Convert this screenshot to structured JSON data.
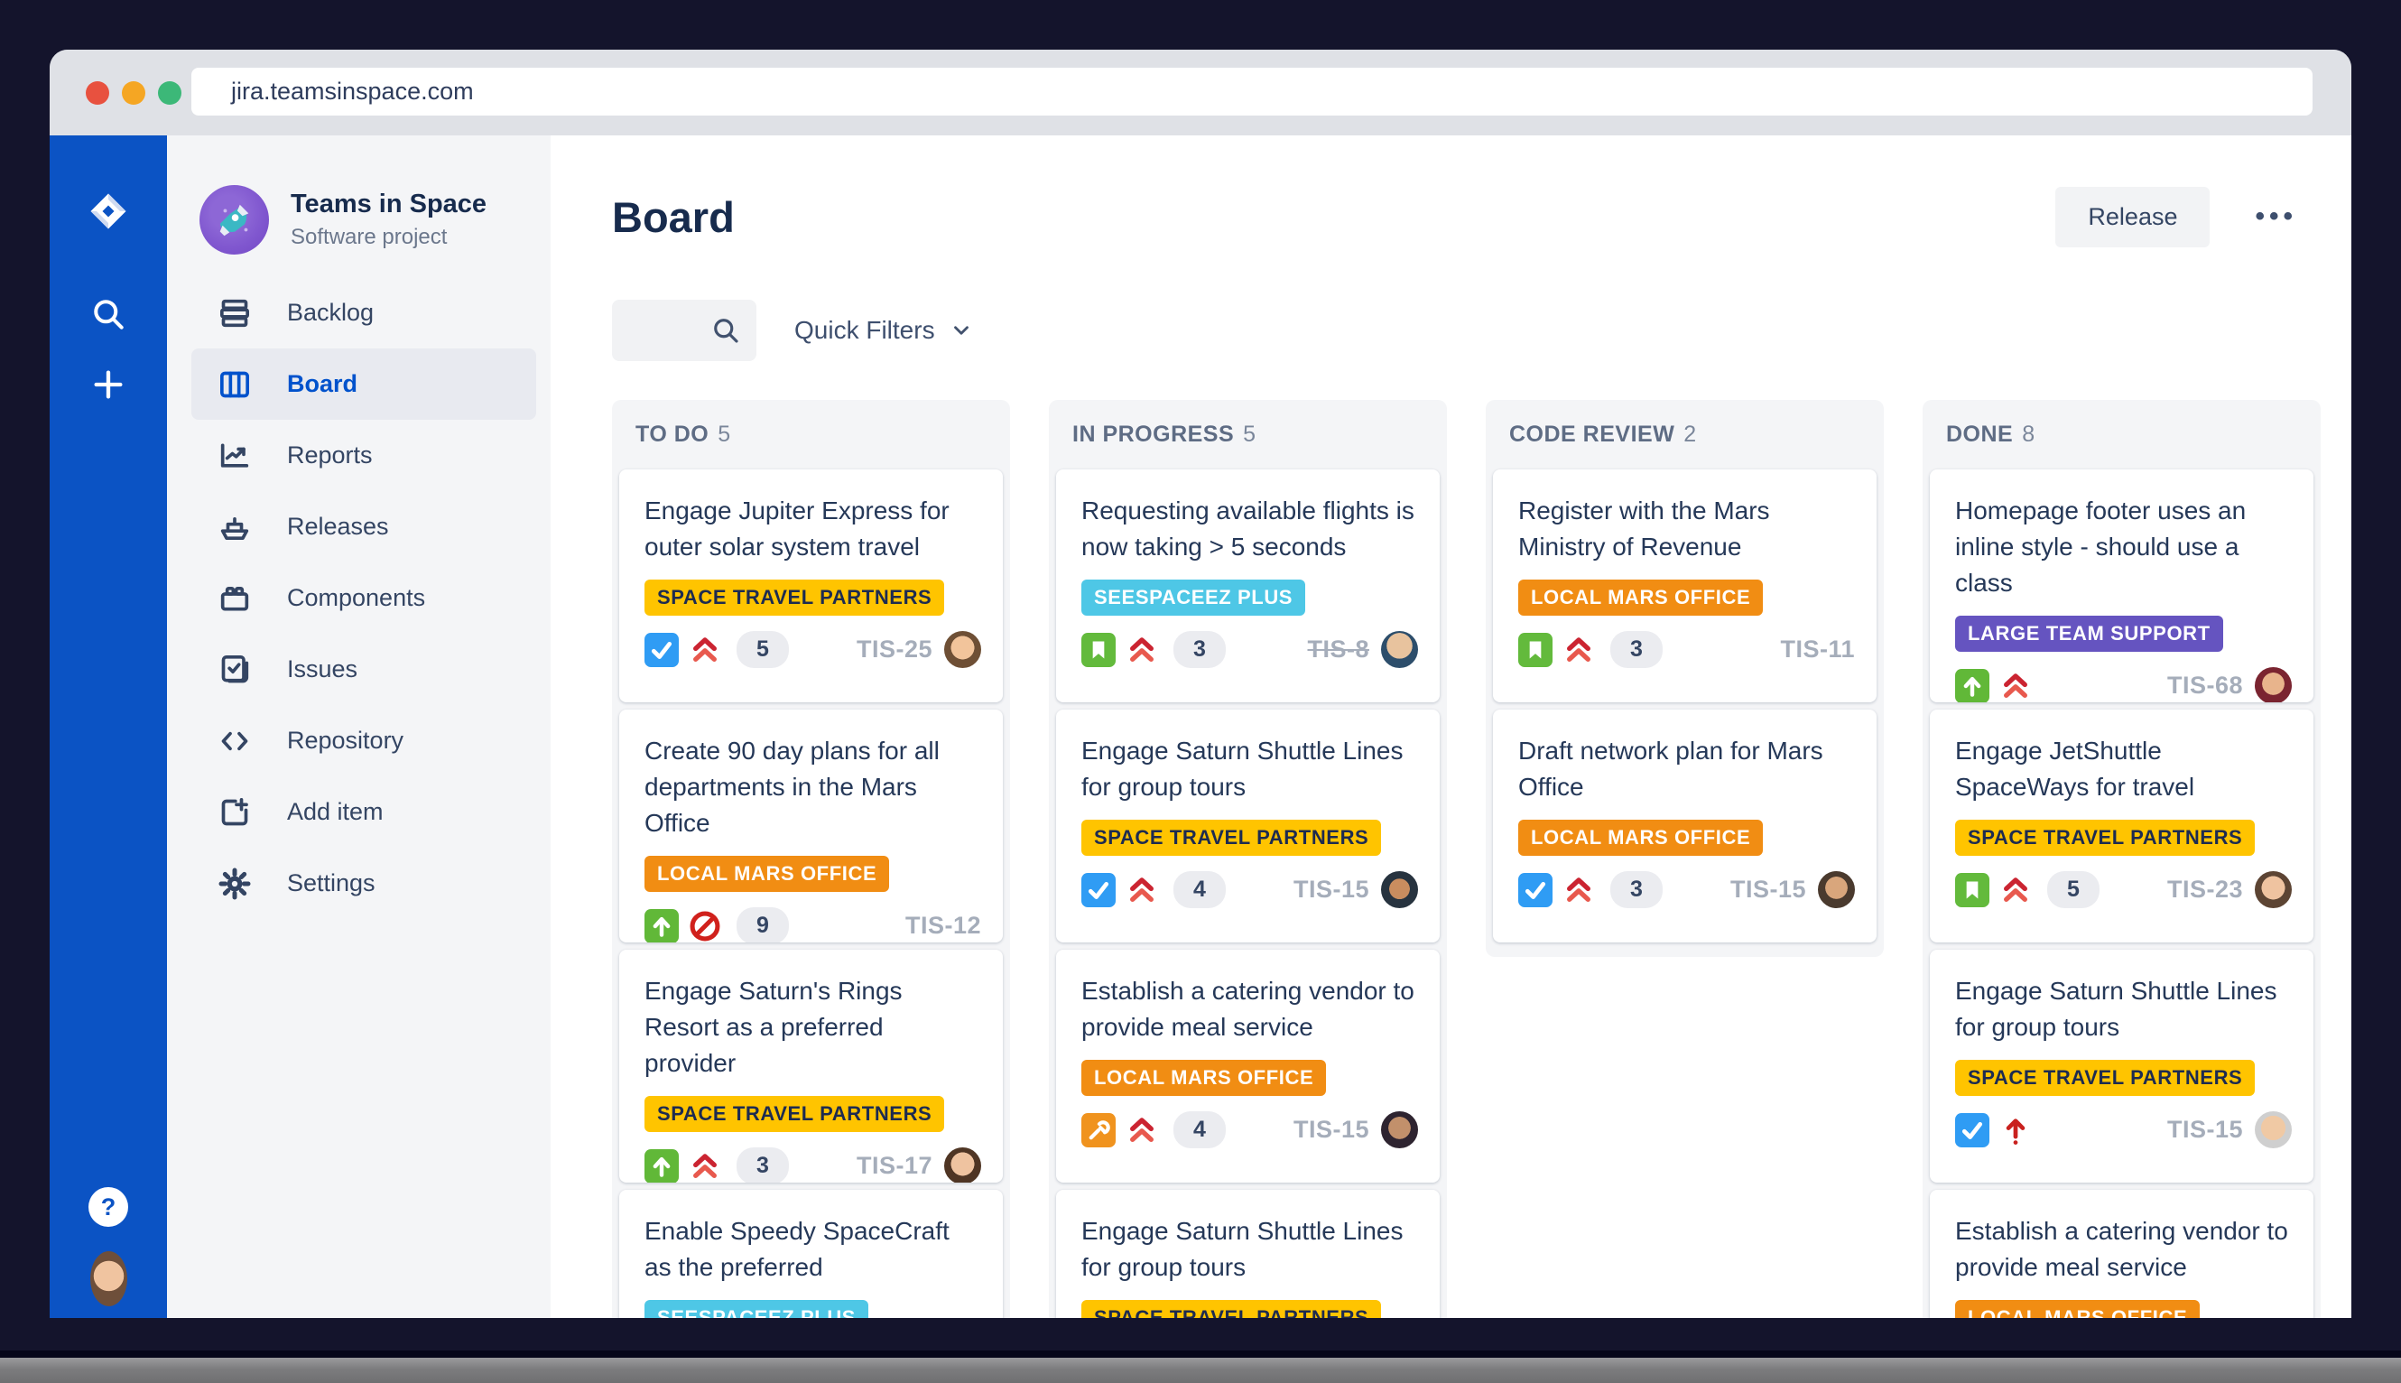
{
  "browser": {
    "url": "jira.teamsinspace.com"
  },
  "rail": {
    "logo_icon": "jira-logo",
    "search_icon": "search-icon",
    "add_icon": "plus-icon",
    "help_label": "?",
    "user_avatar": "w6"
  },
  "sidebar": {
    "project": {
      "name": "Teams in Space",
      "type": "Software project",
      "avatar_icon": "rocket-icon"
    },
    "items": [
      {
        "label": "Backlog",
        "icon": "backlog-icon",
        "selected": false
      },
      {
        "label": "Board",
        "icon": "board-icon",
        "selected": true
      },
      {
        "label": "Reports",
        "icon": "reports-icon",
        "selected": false
      },
      {
        "label": "Releases",
        "icon": "releases-icon",
        "selected": false
      },
      {
        "label": "Components",
        "icon": "components-icon",
        "selected": false
      },
      {
        "label": "Issues",
        "icon": "issues-icon",
        "selected": false
      },
      {
        "label": "Repository",
        "icon": "repository-icon",
        "selected": false
      },
      {
        "label": "Add item",
        "icon": "add-item-icon",
        "selected": false
      },
      {
        "label": "Settings",
        "icon": "settings-icon",
        "selected": false
      }
    ]
  },
  "header": {
    "title": "Board",
    "release_label": "Release",
    "more_label": "•••"
  },
  "filters": {
    "quick_filters_label": "Quick Filters"
  },
  "badge_colors": {
    "SPACE TRAVEL PARTNERS": {
      "bg": "#FFC400",
      "text": "#1D2B50"
    },
    "LOCAL MARS OFFICE": {
      "bg": "#F18D13",
      "text": "#FFFFFF"
    },
    "SEESPACEEZ PLUS": {
      "bg": "#4EC7E6",
      "text": "#FFFFFF"
    },
    "LARGE TEAM SUPPORT": {
      "bg": "#6554C0",
      "text": "#FFFFFF"
    }
  },
  "board": {
    "columns": [
      {
        "name": "TO DO",
        "count": "5",
        "cards": [
          {
            "title": "Engage Jupiter Express for outer solar system travel",
            "badge": "SPACE TRAVEL PARTNERS",
            "type_icon": "task-icon",
            "priority_icon": "priority-highest-icon",
            "estimate": "5",
            "key": "TIS-25",
            "key_struck": false,
            "avatar": "m1"
          },
          {
            "title": "Create 90 day plans for all departments in the Mars Office",
            "badge": "LOCAL MARS OFFICE",
            "type_icon": "improvement-icon",
            "priority_icon": "blocked-icon",
            "estimate": "9",
            "key": "TIS-12",
            "key_struck": false,
            "avatar": null
          },
          {
            "title": "Engage Saturn's Rings Resort as a preferred provider",
            "badge": "SPACE TRAVEL PARTNERS",
            "type_icon": "improvement-icon",
            "priority_icon": "priority-highest-icon",
            "estimate": "3",
            "key": "TIS-17",
            "key_struck": false,
            "avatar": "w1"
          },
          {
            "title": "Enable Speedy SpaceCraft as the preferred",
            "badge": "SEESPACEEZ PLUS",
            "type_icon": null,
            "priority_icon": null,
            "estimate": null,
            "key": null,
            "key_struck": false,
            "avatar": null
          }
        ]
      },
      {
        "name": "IN PROGRESS",
        "count": "5",
        "cards": [
          {
            "title": "Requesting available flights is now taking > 5 seconds",
            "badge": "SEESPACEEZ PLUS",
            "type_icon": "story-icon",
            "priority_icon": "priority-highest-icon",
            "estimate": "3",
            "key": "TIS-8",
            "key_struck": true,
            "avatar": "m2"
          },
          {
            "title": "Engage Saturn Shuttle Lines for group tours",
            "badge": "SPACE TRAVEL PARTNERS",
            "type_icon": "task-icon",
            "priority_icon": "priority-highest-icon",
            "estimate": "4",
            "key": "TIS-15",
            "key_struck": false,
            "avatar": "m3"
          },
          {
            "title": "Establish a catering vendor to provide meal service",
            "badge": "LOCAL MARS OFFICE",
            "type_icon": "wrench-icon",
            "priority_icon": "priority-highest-icon",
            "estimate": "4",
            "key": "TIS-15",
            "key_struck": false,
            "avatar": "w2"
          },
          {
            "title": "Engage Saturn Shuttle Lines for group tours",
            "badge": "SPACE TRAVEL PARTNERS",
            "type_icon": null,
            "priority_icon": null,
            "estimate": null,
            "key": null,
            "key_struck": false,
            "avatar": null
          }
        ]
      },
      {
        "name": "CODE REVIEW",
        "count": "2",
        "cards": [
          {
            "title": "Register with the Mars Ministry of Revenue",
            "badge": "LOCAL MARS OFFICE",
            "type_icon": "story-icon",
            "priority_icon": "priority-highest-icon",
            "estimate": "3",
            "key": "TIS-11",
            "key_struck": false,
            "avatar": null
          },
          {
            "title": "Draft network plan for Mars Office",
            "badge": "LOCAL MARS OFFICE",
            "type_icon": "task-icon",
            "priority_icon": "priority-highest-icon",
            "estimate": "3",
            "key": "TIS-15",
            "key_struck": false,
            "avatar": "w3"
          }
        ]
      },
      {
        "name": "DONE",
        "count": "8",
        "cards": [
          {
            "title": "Homepage footer uses an inline style - should use a class",
            "badge": "LARGE TEAM SUPPORT",
            "type_icon": "improvement-icon",
            "priority_icon": "priority-highest-icon",
            "estimate": null,
            "key": "TIS-68",
            "key_struck": false,
            "avatar": "w4"
          },
          {
            "title": "Engage JetShuttle SpaceWays for travel",
            "badge": "SPACE TRAVEL PARTNERS",
            "type_icon": "story-icon",
            "priority_icon": "priority-highest-icon",
            "estimate": "5",
            "key": "TIS-23",
            "key_struck": false,
            "avatar": "w5"
          },
          {
            "title": "Engage Saturn Shuttle Lines for group tours",
            "badge": "SPACE TRAVEL PARTNERS",
            "type_icon": "task-icon",
            "priority_icon": "priority-critical-icon",
            "estimate": null,
            "key": "TIS-15",
            "key_struck": false,
            "avatar": "m4"
          },
          {
            "title": "Establish a catering vendor to provide meal service",
            "badge": "LOCAL MARS OFFICE",
            "type_icon": null,
            "priority_icon": null,
            "estimate": null,
            "key": null,
            "key_struck": false,
            "avatar": null
          }
        ]
      }
    ]
  },
  "colors": {
    "rail_blue": "#0B53C4",
    "accent_blue": "#0052CC",
    "title_navy": "#172B4D",
    "traffic_red": "#E8513F",
    "traffic_yellow": "#F5A623",
    "traffic_green": "#3CB878",
    "column_bg": "#F4F5F7",
    "priority_red": "#CB2431"
  }
}
